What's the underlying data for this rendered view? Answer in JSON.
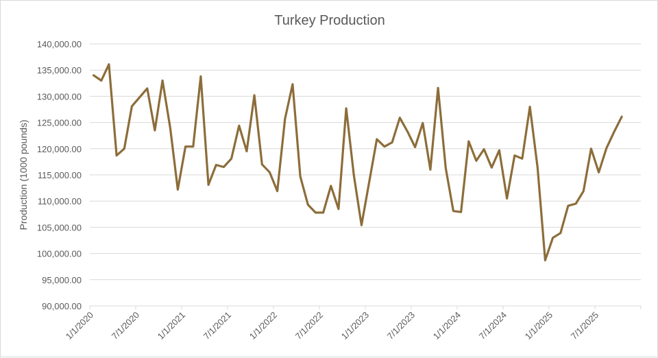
{
  "chart_data": {
    "type": "line",
    "title": "Turkey Production",
    "xlabel": "",
    "ylabel": "Production (1000 pounds)",
    "ylim": [
      90000,
      140000
    ],
    "y_ticks": [
      "140,000.00",
      "135,000.00",
      "130,000.00",
      "125,000.00",
      "120,000.00",
      "115,000.00",
      "110,000.00",
      "105,000.00",
      "100,000.00",
      "95,000.00",
      "90,000.00"
    ],
    "x_tick_labels": [
      "1/1/2020",
      "7/1/2020",
      "1/1/2021",
      "7/1/2021",
      "1/1/2022",
      "7/1/2022",
      "1/1/2023",
      "7/1/2023",
      "1/1/2024",
      "7/1/2024",
      "1/1/2025",
      "7/1/2025"
    ],
    "grid": true,
    "legend": "none",
    "line_color": "#8c6d3a",
    "series": [
      {
        "name": "Turkey Production",
        "start": "1/1/2020",
        "frequency": "monthly",
        "values": [
          134000,
          133000,
          136100,
          118700,
          120000,
          128100,
          129800,
          131500,
          123500,
          133000,
          124000,
          112200,
          120400,
          120400,
          133800,
          113100,
          116900,
          116500,
          118100,
          124400,
          119500,
          130200,
          117000,
          115500,
          111900,
          125700,
          132300,
          114700,
          109300,
          107800,
          107800,
          112900,
          108500,
          127700,
          114900,
          105400,
          113600,
          121800,
          120400,
          121200,
          125900,
          123300,
          120300,
          124900,
          116000,
          131600,
          116300,
          108100,
          107900,
          121400,
          117700,
          119900,
          116400,
          119700,
          110500,
          118700,
          118100,
          128000,
          116400,
          98700,
          103000,
          103900,
          109100,
          109500,
          111900,
          120000,
          115500,
          120100,
          123200,
          126100
        ]
      }
    ]
  }
}
